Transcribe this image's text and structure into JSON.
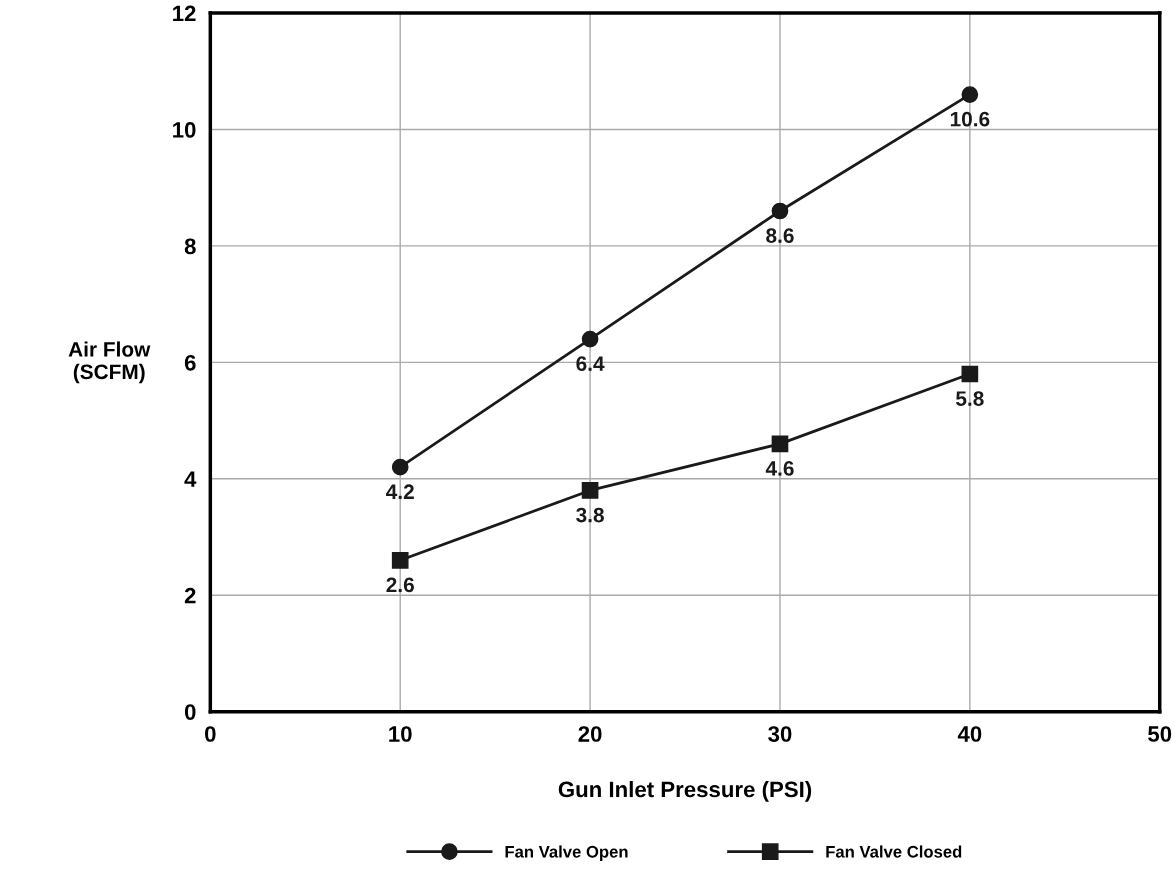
{
  "chart_data": {
    "type": "line",
    "xlabel": "Gun Inlet Pressure (PSI)",
    "ylabel": "Air Flow\n(SCFM)",
    "x": [
      10,
      20,
      30,
      40
    ],
    "series": [
      {
        "name": "Fan Valve Open",
        "color": "#1a1a1a",
        "marker": "circle",
        "values": [
          4.2,
          6.4,
          8.6,
          10.6
        ]
      },
      {
        "name": "Fan Valve Closed",
        "color": "#1a1a1a",
        "marker": "square",
        "values": [
          2.6,
          3.8,
          4.6,
          5.8
        ]
      }
    ],
    "xlim": [
      0,
      50
    ],
    "xticks": [
      0,
      10,
      20,
      30,
      40,
      50
    ],
    "ylim": [
      0,
      12
    ],
    "yticks": [
      0,
      2,
      4,
      6,
      8,
      10,
      12
    ],
    "grid": true,
    "legend": "bottom",
    "data_labels": true,
    "line_style": "solid"
  }
}
